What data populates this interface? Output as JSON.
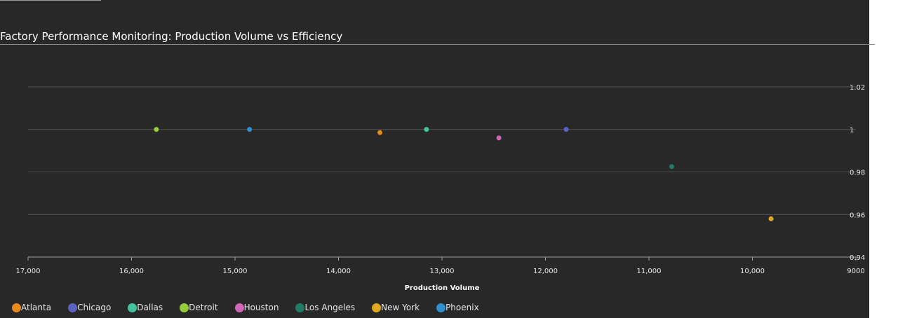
{
  "header": {
    "title": "Factory Performance Monitoring: Production Volume vs Efficiency"
  },
  "chart_data": {
    "type": "scatter",
    "title": "Factory Performance Monitoring: Production Volume vs Efficiency",
    "xlabel": "Production Volume",
    "ylabel": "",
    "xlim": [
      17000,
      9000
    ],
    "x_reversed": true,
    "ylim": [
      0.94,
      1.02
    ],
    "x_ticks": [
      "17,000",
      "16,000",
      "15,000",
      "14,000",
      "13,000",
      "12,000",
      "11,000",
      "10,000",
      "9000"
    ],
    "x_tick_values": [
      17000,
      16000,
      15000,
      14000,
      13000,
      12000,
      11000,
      10000,
      9000
    ],
    "y_ticks": [
      "0.94",
      "0.96",
      "0.98",
      "1",
      "1.02"
    ],
    "y_tick_values": [
      0.94,
      0.96,
      0.98,
      1.0,
      1.02
    ],
    "grid": true,
    "legend_position": "bottom-left",
    "series": [
      {
        "name": "Atlanta",
        "color": "#e8891c",
        "points": [
          {
            "x": 13600,
            "y": 0.9985
          }
        ]
      },
      {
        "name": "Chicago",
        "color": "#5b63c0",
        "points": [
          {
            "x": 11800,
            "y": 1.0
          }
        ]
      },
      {
        "name": "Dallas",
        "color": "#45c3a0",
        "points": [
          {
            "x": 13150,
            "y": 1.0
          }
        ]
      },
      {
        "name": "Detroit",
        "color": "#95cc3a",
        "points": [
          {
            "x": 15760,
            "y": 1.0
          }
        ]
      },
      {
        "name": "Houston",
        "color": "#d166b8",
        "points": [
          {
            "x": 12450,
            "y": 0.996
          }
        ]
      },
      {
        "name": "Los Angeles",
        "color": "#1f7a66",
        "points": [
          {
            "x": 10780,
            "y": 0.9825
          }
        ]
      },
      {
        "name": "New York",
        "color": "#e0a91d",
        "points": [
          {
            "x": 9820,
            "y": 0.958
          }
        ]
      },
      {
        "name": "Phoenix",
        "color": "#2f8fcf",
        "points": [
          {
            "x": 14860,
            "y": 1.0
          }
        ]
      }
    ]
  }
}
